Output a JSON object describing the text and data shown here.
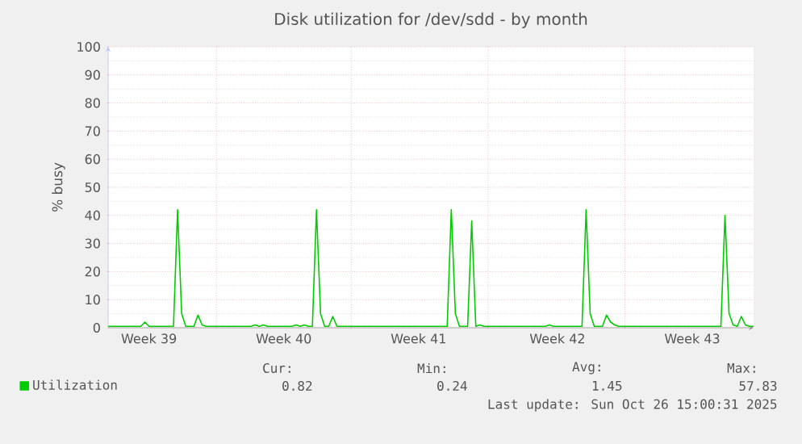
{
  "chart_data": {
    "type": "line",
    "title": "Disk utilization for /dev/sdd - by month",
    "ylabel": "% busy",
    "categories": [
      null,
      null,
      null,
      null,
      null,
      null,
      null,
      null,
      null,
      null,
      "Week 39",
      null,
      null,
      null,
      null,
      null,
      null,
      null,
      null,
      null,
      null,
      null,
      null,
      null,
      null,
      null,
      null,
      null,
      null,
      null,
      null,
      null,
      null,
      null,
      null,
      null,
      null,
      null,
      null,
      null,
      null,
      null,
      null,
      "Week 40",
      null,
      null,
      null,
      null,
      null,
      null,
      null,
      null,
      null,
      null,
      null,
      null,
      null,
      null,
      null,
      null,
      null,
      null,
      null,
      null,
      null,
      null,
      null,
      null,
      null,
      null,
      null,
      null,
      null,
      null,
      null,
      null,
      "Week 41",
      null,
      null,
      null,
      null,
      null,
      null,
      null,
      null,
      null,
      null,
      null,
      null,
      null,
      null,
      null,
      null,
      null,
      null,
      null,
      null,
      null,
      null,
      null,
      null,
      null,
      null,
      null,
      null,
      null,
      null,
      null,
      null,
      null,
      "Week 42",
      null,
      null,
      null,
      null,
      null,
      null,
      null,
      null,
      null,
      null,
      null,
      null,
      null,
      null,
      null,
      null,
      null,
      null,
      null,
      null,
      null,
      null,
      null,
      null,
      null,
      null,
      null,
      null,
      null,
      null,
      null,
      null,
      "Week 43",
      null,
      null,
      null,
      null,
      null,
      null,
      null,
      null,
      null,
      null,
      null,
      null,
      null,
      null,
      null
    ],
    "ylim": [
      0,
      100
    ],
    "yticks": [
      0,
      10,
      20,
      30,
      40,
      50,
      60,
      70,
      80,
      90,
      100
    ],
    "grid": true,
    "legend": "bottom left",
    "marker": "none",
    "line_style": "solid",
    "series": [
      {
        "name": "Utilization",
        "color": "#00cc00",
        "values": [
          0.5,
          0.5,
          0.5,
          0.5,
          0.5,
          0.5,
          0.5,
          0.5,
          0.5,
          2,
          0.5,
          0.5,
          0.5,
          0.5,
          0.5,
          0.5,
          0.5,
          42,
          5,
          0.5,
          0.5,
          0.5,
          4.5,
          1,
          0.5,
          0.5,
          0.5,
          0.5,
          0.5,
          0.5,
          0.5,
          0.5,
          0.5,
          0.5,
          0.5,
          0.5,
          1,
          0.5,
          1,
          0.5,
          0.5,
          0.5,
          0.5,
          0.5,
          0.5,
          0.5,
          1,
          0.5,
          1,
          0.5,
          0.5,
          42,
          5,
          0.5,
          0.5,
          4,
          0.5,
          0.5,
          0.5,
          0.5,
          0.5,
          0.5,
          0.5,
          0.5,
          0.5,
          0.5,
          0.5,
          0.5,
          0.5,
          0.5,
          0.5,
          0.5,
          0.5,
          0.5,
          0.5,
          0.5,
          0.5,
          0.5,
          0.5,
          0.5,
          0.5,
          0.5,
          0.5,
          0.5,
          42,
          5,
          0.5,
          0.5,
          0.5,
          38,
          0.5,
          1,
          0.5,
          0.5,
          0.5,
          0.5,
          0.5,
          0.5,
          0.5,
          0.5,
          0.5,
          0.5,
          0.5,
          0.5,
          0.5,
          0.5,
          0.5,
          0.5,
          1,
          0.5,
          0.5,
          0.5,
          0.5,
          0.5,
          0.5,
          0.5,
          0.5,
          42,
          5,
          0.5,
          0.5,
          0.5,
          4.5,
          2,
          1,
          0.5,
          0.5,
          0.5,
          0.5,
          0.5,
          0.5,
          0.5,
          0.5,
          0.5,
          0.5,
          0.5,
          0.5,
          0.5,
          0.5,
          0.5,
          0.5,
          0.5,
          0.5,
          0.5,
          0.5,
          0.5,
          0.5,
          0.5,
          0.5,
          0.5,
          0.5,
          40,
          5,
          1,
          0.5,
          4,
          1,
          0.5,
          0.5
        ]
      }
    ],
    "annotations": [
      "Cur:",
      "Min:",
      "Avg:",
      "Max:",
      "0.82",
      "0.24",
      "1.45",
      "57.83",
      "Last update: Sun Oct 26 15:00:31 2025"
    ]
  }
}
